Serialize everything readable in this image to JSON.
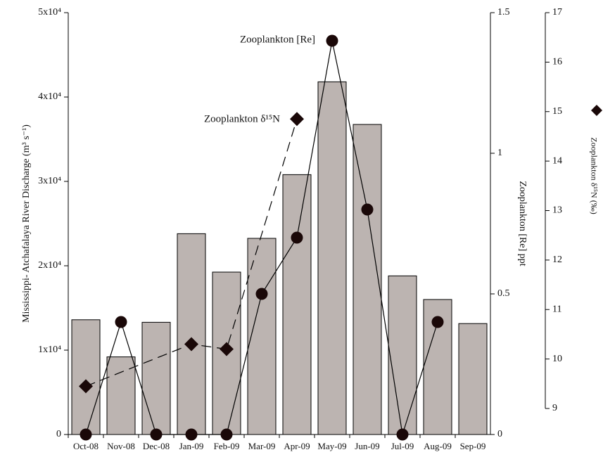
{
  "chart_data": {
    "type": "bar",
    "categories": [
      "Oct-08",
      "Nov-08",
      "Dec-08",
      "Jan-09",
      "Feb-09",
      "Mar-09",
      "Apr-09",
      "May-09",
      "Jun-09",
      "Jul-09",
      "Aug-09",
      "Sep-09"
    ],
    "ylabel": "Mississippi- Atchafalaya River Discharge (m³ s⁻¹)",
    "y2label": "Zooplankton [Re] ppt",
    "y3label": "Zooplankton δ¹⁵N (‰)",
    "ylim": [
      0,
      50000
    ],
    "yticks": [
      0,
      {
        "value": 10000,
        "label": "1x10⁴"
      },
      {
        "value": 20000,
        "label": "2x10⁴"
      },
      {
        "value": 30000,
        "label": "3x10⁴"
      },
      {
        "value": 40000,
        "label": "4x10⁴"
      },
      {
        "value": 50000,
        "label": "5x10⁴"
      }
    ],
    "y2lim": [
      0,
      1.5
    ],
    "y2ticks": [
      0,
      0.5,
      1,
      1.5
    ],
    "y3lim": [
      9,
      17
    ],
    "y3ticks": [
      9,
      10,
      11,
      12,
      13,
      14,
      15,
      16,
      17
    ],
    "series": [
      {
        "type": "bar",
        "axis": "y",
        "color": "#bcb4b1",
        "values": [
          13600,
          9200,
          13300,
          23800,
          19250,
          23250,
          30800,
          41800,
          36750,
          18800,
          16000,
          13150
        ]
      },
      {
        "type": "line",
        "axis": "y2",
        "color": "#1a0808",
        "values": [
          0,
          0.4,
          0,
          0,
          0,
          0.5,
          0.7,
          1.4,
          0.8,
          0,
          0.4,
          null
        ]
      },
      {
        "type": "line",
        "axis": "y3",
        "color": "#1a0808",
        "dashed": true,
        "marker": "diamond",
        "x": [
          "Oct-08",
          "Jan-09",
          "Feb-09",
          "Apr-09"
        ],
        "values": [
          9.45,
          10.3,
          10.2,
          14.85
        ]
      }
    ],
    "annotations": [
      "Zooplankton [Re]",
      "Zooplankton δ¹⁵N"
    ]
  }
}
